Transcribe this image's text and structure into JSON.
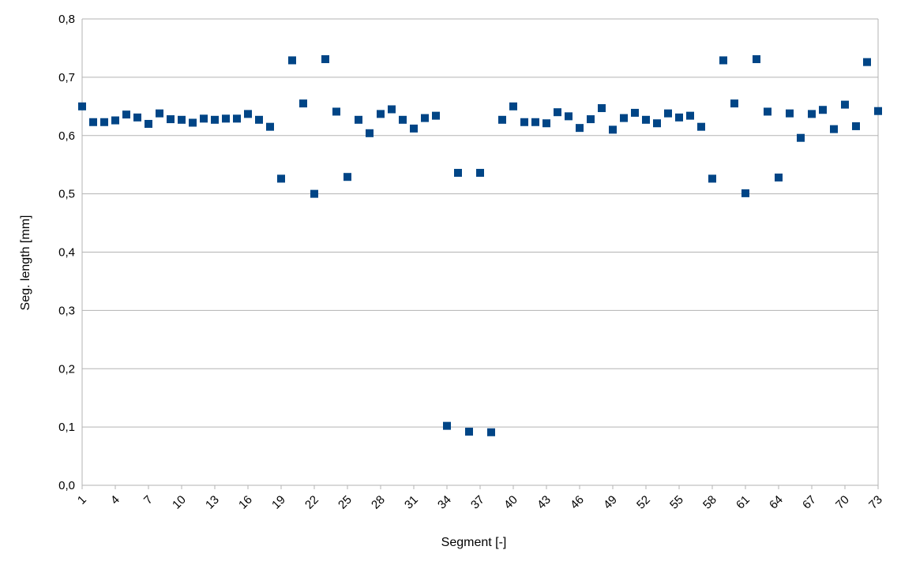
{
  "chart_data": {
    "type": "scatter",
    "xlabel": "Segment [-]",
    "ylabel": "Seg. length [mm]",
    "xlim": [
      1,
      73
    ],
    "ylim": [
      0.0,
      0.8
    ],
    "x_tick_labels": [
      "1",
      "4",
      "7",
      "10",
      "13",
      "16",
      "19",
      "22",
      "25",
      "28",
      "31",
      "34",
      "37",
      "40",
      "43",
      "46",
      "49",
      "52",
      "55",
      "58",
      "61",
      "64",
      "67",
      "70",
      "73"
    ],
    "y_tick_labels": [
      "0,0",
      "0,1",
      "0,2",
      "0,3",
      "0,4",
      "0,5",
      "0,6",
      "0,7",
      "0,8"
    ],
    "grid": true,
    "legend": "none",
    "marker": "square",
    "colors": {
      "marker": "#004586",
      "grid": "#b3b3b3",
      "axis": "#b3b3b3"
    },
    "x": [
      1,
      2,
      3,
      4,
      5,
      6,
      7,
      8,
      9,
      10,
      11,
      12,
      13,
      14,
      15,
      16,
      17,
      18,
      19,
      20,
      21,
      22,
      23,
      24,
      25,
      26,
      27,
      28,
      29,
      30,
      31,
      32,
      33,
      34,
      35,
      36,
      37,
      38,
      39,
      40,
      41,
      42,
      43,
      44,
      45,
      46,
      47,
      48,
      49,
      50,
      51,
      52,
      53,
      54,
      55,
      56,
      57,
      58,
      59,
      60,
      61,
      62,
      63,
      64,
      65,
      66,
      67,
      68,
      69,
      70,
      71,
      72,
      73
    ],
    "y": [
      0.65,
      0.623,
      0.623,
      0.626,
      0.636,
      0.631,
      0.62,
      0.638,
      0.628,
      0.627,
      0.622,
      0.629,
      0.627,
      0.629,
      0.629,
      0.637,
      0.627,
      0.615,
      0.526,
      0.729,
      0.655,
      0.5,
      0.731,
      0.641,
      0.529,
      0.627,
      0.604,
      0.637,
      0.645,
      0.627,
      0.612,
      0.63,
      0.634,
      0.102,
      0.536,
      0.092,
      0.536,
      0.091,
      0.627,
      0.65,
      0.623,
      0.623,
      0.621,
      0.64,
      0.633,
      0.613,
      0.628,
      0.647,
      0.61,
      0.63,
      0.639,
      0.627,
      0.621,
      0.638,
      0.631,
      0.634,
      0.615,
      0.526,
      0.729,
      0.655,
      0.501,
      0.731,
      0.641,
      0.528,
      0.638,
      0.596,
      0.637,
      0.644,
      0.611,
      0.653,
      0.616,
      0.726,
      0.642
    ]
  }
}
